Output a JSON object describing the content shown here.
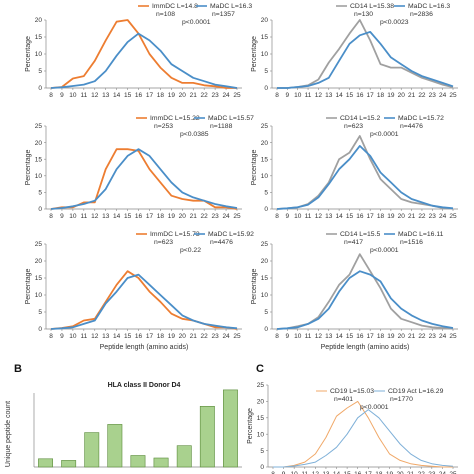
{
  "xlabel": "Peptide length (amino acids)",
  "colors": {
    "orange": "#ed7d31",
    "blue": "#4a8ec8",
    "gray": "#a0a0a0",
    "bar_fill": "#a9d18e",
    "bar_stroke": "#5a8a3a",
    "thin_orange": "#f0a868",
    "thin_blue": "#7fb0d8"
  },
  "chart_data": [
    {
      "type": "line",
      "panel": "left-1",
      "x": [
        8,
        9,
        10,
        11,
        12,
        13,
        14,
        15,
        16,
        17,
        18,
        19,
        20,
        21,
        22,
        23,
        24,
        25
      ],
      "ylim": [
        0,
        20
      ],
      "yticks": [
        0,
        5,
        10,
        15,
        20
      ],
      "ylabel": "Percentage",
      "series": [
        {
          "name": "ImmDC L=14.8",
          "color": "orange",
          "values": [
            0,
            0.3,
            2.8,
            3.5,
            8,
            14,
            19.5,
            21,
            16,
            10,
            6,
            3,
            1.5,
            1.5,
            0.8,
            0.5,
            0,
            0
          ]
        },
        {
          "name": "MaDC L=16.3",
          "color": "blue",
          "values": [
            0,
            0.2,
            0.6,
            1,
            2,
            5,
            9.5,
            13.5,
            16,
            14,
            11,
            7,
            5,
            3,
            2,
            1,
            0.5,
            0
          ]
        }
      ],
      "legend_stats": [
        "n=108",
        "n=1357",
        "p<0.0001"
      ]
    },
    {
      "type": "line",
      "panel": "right-1",
      "x": [
        8,
        9,
        10,
        11,
        12,
        13,
        14,
        15,
        16,
        17,
        18,
        19,
        20,
        21,
        22,
        23,
        24,
        25
      ],
      "ylim": [
        0,
        20
      ],
      "yticks": [
        0,
        5,
        10,
        15,
        20
      ],
      "ylabel": "Percentage",
      "series": [
        {
          "name": "CD14 L=15.38",
          "color": "gray",
          "values": [
            0,
            0,
            0.3,
            0.8,
            2.5,
            7.5,
            11.5,
            16,
            20,
            14,
            7,
            6,
            6,
            4.5,
            3,
            2,
            1,
            0.2
          ]
        },
        {
          "name": "MaDC L=16.3",
          "color": "blue",
          "values": [
            0,
            0,
            0.3,
            0.6,
            1.5,
            3,
            8,
            13,
            15.5,
            16.5,
            13,
            9,
            7,
            5,
            3.5,
            2.5,
            1.5,
            0.5
          ]
        }
      ],
      "legend_stats": [
        "n=130",
        "n=2836",
        "p<0.0023"
      ]
    },
    {
      "type": "line",
      "panel": "left-2",
      "x": [
        8,
        9,
        10,
        11,
        12,
        13,
        14,
        15,
        16,
        17,
        18,
        19,
        20,
        21,
        22,
        23,
        24,
        25
      ],
      "ylim": [
        0,
        25
      ],
      "yticks": [
        0,
        5,
        10,
        15,
        20,
        25
      ],
      "ylabel": "Percentage",
      "series": [
        {
          "name": "ImmDC L=15.22",
          "color": "orange",
          "values": [
            0,
            0.5,
            0.5,
            2,
            2,
            12,
            18,
            18,
            17.5,
            12,
            8,
            4,
            3,
            2.5,
            2.5,
            0.5,
            0.5,
            0
          ]
        },
        {
          "name": "MaDC L=15.57",
          "color": "blue",
          "values": [
            0,
            0.3,
            0.8,
            1.5,
            2.5,
            6,
            12,
            16,
            18,
            16,
            12,
            8,
            5,
            3.5,
            2.5,
            1.5,
            0.8,
            0.3
          ]
        }
      ],
      "legend_stats": [
        "n=253",
        "n=1188",
        "p<0.0385"
      ]
    },
    {
      "type": "line",
      "panel": "right-2",
      "x": [
        8,
        9,
        10,
        11,
        12,
        13,
        14,
        15,
        16,
        17,
        18,
        19,
        20,
        21,
        22,
        23,
        24,
        25
      ],
      "ylim": [
        0,
        25
      ],
      "yticks": [
        0,
        5,
        10,
        15,
        20,
        25
      ],
      "ylabel": "Percentage",
      "series": [
        {
          "name": "CD14 L=15.2",
          "color": "gray",
          "values": [
            0,
            0.2,
            0.5,
            1.5,
            4,
            8,
            15,
            17,
            22,
            15,
            9,
            6,
            3,
            2,
            1.5,
            1,
            0.3,
            0.1
          ]
        },
        {
          "name": "MaDC L=15.72",
          "color": "blue",
          "values": [
            0,
            0.2,
            0.5,
            1.3,
            3.5,
            7.5,
            12,
            15,
            19,
            16,
            11,
            8,
            5,
            3,
            2,
            1,
            0.5,
            0.2
          ]
        }
      ],
      "legend_stats": [
        "n=623",
        "n=4476",
        "p<0.0001"
      ]
    },
    {
      "type": "line",
      "panel": "left-3",
      "x": [
        8,
        9,
        10,
        11,
        12,
        13,
        14,
        15,
        16,
        17,
        18,
        19,
        20,
        21,
        22,
        23,
        24,
        25
      ],
      "ylim": [
        0,
        25
      ],
      "yticks": [
        0,
        5,
        10,
        15,
        20,
        25
      ],
      "ylabel": "Percentage",
      "series": [
        {
          "name": "ImmDC L=15.73",
          "color": "orange",
          "values": [
            0,
            0.3,
            0.8,
            2.5,
            3,
            8,
            13,
            17,
            15,
            11,
            8,
            4.5,
            3,
            2.5,
            1.5,
            0.5,
            0.5,
            0
          ]
        },
        {
          "name": "MaDC L=15.92",
          "color": "blue",
          "values": [
            0,
            0.2,
            0.5,
            1.5,
            2.5,
            7.5,
            11,
            15,
            16,
            13,
            10,
            7,
            4,
            2.5,
            1.5,
            1,
            0.5,
            0.2
          ]
        }
      ],
      "legend_stats": [
        "n=623",
        "n=4476",
        "p<0.22"
      ]
    },
    {
      "type": "line",
      "panel": "right-3",
      "x": [
        8,
        9,
        10,
        11,
        12,
        13,
        14,
        15,
        16,
        17,
        18,
        19,
        20,
        21,
        22,
        23,
        24,
        25
      ],
      "ylim": [
        0,
        25
      ],
      "yticks": [
        0,
        5,
        10,
        15,
        20,
        25
      ],
      "ylabel": "Percentage",
      "series": [
        {
          "name": "CD14 L=15.5",
          "color": "gray",
          "values": [
            0,
            0.2,
            0.8,
            1.5,
            3.5,
            8,
            13,
            16,
            22,
            17,
            12,
            6,
            3,
            2,
            1,
            0.5,
            0.3,
            0.1
          ]
        },
        {
          "name": "MaDC L=16.11",
          "color": "blue",
          "values": [
            0,
            0.2,
            0.5,
            1.5,
            3,
            6,
            11,
            15,
            17,
            16,
            14,
            9,
            6,
            4,
            2.5,
            1.5,
            0.8,
            0.3
          ]
        }
      ],
      "legend_stats": [
        "n=417",
        "n=1516",
        "p<0.0001"
      ]
    },
    {
      "type": "bar",
      "panel": "B",
      "title": "HLA class II Donor D4",
      "ylabel": "Unique peptide count",
      "ylim": [
        0,
        5000
      ],
      "values": [
        500,
        400,
        2100,
        2600,
        700,
        550,
        1300,
        3700,
        4700
      ]
    },
    {
      "type": "line",
      "panel": "C",
      "ylabel": "Percentage",
      "x": [
        8,
        9,
        10,
        11,
        12,
        13,
        14,
        15,
        16,
        17,
        18,
        19,
        20,
        21,
        22,
        23,
        24,
        25
      ],
      "ylim": [
        0,
        25
      ],
      "yticks": [
        0,
        5,
        10,
        15,
        20,
        25
      ],
      "series": [
        {
          "name": "CD19 L=15.03",
          "color": "thin_orange",
          "values": [
            0,
            0,
            0.5,
            1.5,
            4,
            9,
            15.5,
            18,
            20,
            15,
            9,
            4,
            2,
            1,
            0.5,
            0.2,
            0,
            0
          ]
        },
        {
          "name": "CD19 Act L=16.29",
          "color": "thin_blue",
          "values": [
            0,
            0,
            0.3,
            0.8,
            1.5,
            3.5,
            6,
            10,
            15,
            17.5,
            15,
            11,
            7,
            4,
            2,
            1,
            0.5,
            0.2
          ]
        }
      ],
      "legend_stats": [
        "n=401",
        "n=1770",
        "p<0.0001"
      ]
    }
  ],
  "panel_letters": {
    "B": "B",
    "C": "C"
  }
}
